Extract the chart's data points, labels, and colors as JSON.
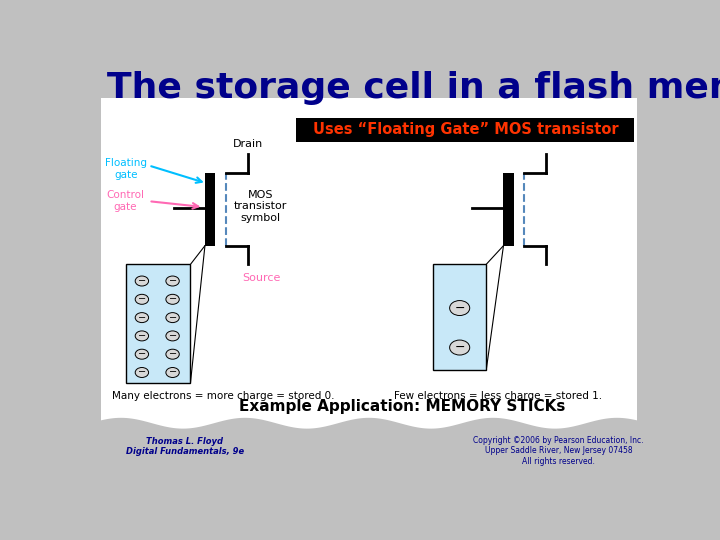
{
  "title": "The storage cell in a flash memory",
  "title_color": "#00008B",
  "title_fontsize": 26,
  "subtitle": "Uses “Floating Gate” MOS transistor",
  "subtitle_color": "#FF3300",
  "subtitle_bg": "#000000",
  "example_text": "Example Application: MEMORY STICKs",
  "example_color": "#000000",
  "author_text": "Thomas L. Floyd\nDigital Fundamentals, 9e",
  "copyright_text": "Copyright ©2006 by Pearson Education, Inc.\nUpper Saddle River, New Jersey 07458\nAll rights reserved.",
  "label_floating": "Floating\ngate",
  "label_control": "Control\ngate",
  "label_drain": "Drain",
  "label_source": "Source",
  "label_mos": "MOS\ntransistor\nsymbol",
  "label_many": "Many electrons = more charge = stored 0.",
  "label_few": "Few electrons = less charge = stored 1.",
  "bg_color": "#C0C0C0",
  "main_bg": "#FFFFFF",
  "light_blue": "#C8E8F8",
  "channel_color": "#5588BB",
  "floating_gate_color": "#00BFFF",
  "control_gate_color": "#FF69B4"
}
